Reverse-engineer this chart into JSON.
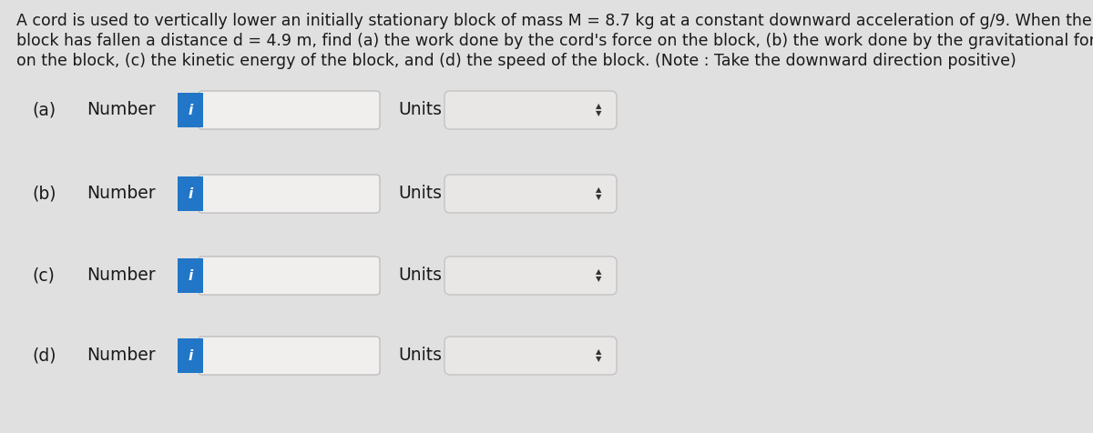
{
  "background_color": "#e0e0e0",
  "title_lines": [
    "A cord is used to vertically lower an initially stationary block of mass M = 8.7 kg at a constant downward acceleration of g/9. When the",
    "block has fallen a distance d = 4.9 m, find (a) the work done by the cord's force on the block, (b) the work done by the gravitational force",
    "on the block, (c) the kinetic energy of the block, and (d) the speed of the block. (Note : Take the downward direction positive)"
  ],
  "parts": [
    "(a)",
    "(b)",
    "(c)",
    "(d)"
  ],
  "label": "Number",
  "units_label": "Units",
  "input_box_color": "#f0efee",
  "input_box_border": "#c0bebe",
  "info_button_color": "#2176c7",
  "info_button_text": "i",
  "info_button_text_color": "#ffffff",
  "arrow_color": "#333333",
  "text_color": "#1a1a1a",
  "title_fontsize": 12.5,
  "label_fontsize": 13.5,
  "units_box_color": "#e8e7e6",
  "units_box_border": "#c5c3c3"
}
